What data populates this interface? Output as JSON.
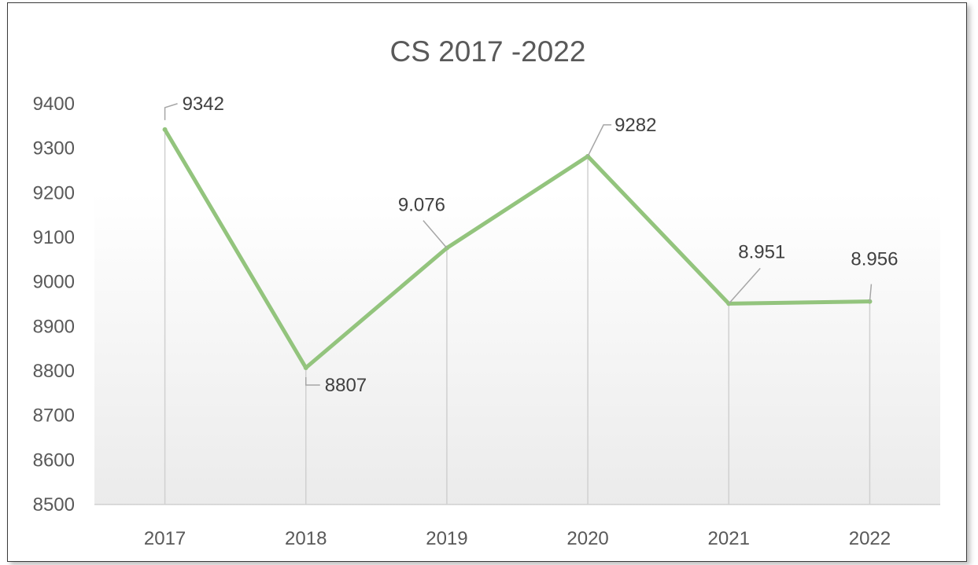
{
  "chart_data": {
    "type": "line",
    "title": "CS 2017 -2022",
    "categories": [
      "2017",
      "2018",
      "2019",
      "2020",
      "2021",
      "2022"
    ],
    "values": [
      9342,
      8807,
      9076,
      9282,
      8951,
      8956
    ],
    "data_labels": [
      "9342",
      "8807",
      "9.076",
      "9282",
      "8.951",
      "8.956"
    ],
    "ylim": [
      8500,
      9400
    ],
    "yticks": [
      "8500",
      "8600",
      "8700",
      "8800",
      "8900",
      "9000",
      "9100",
      "9200",
      "9300",
      "9400"
    ],
    "xlabel": "",
    "ylabel": "",
    "line_color": "#93c47d",
    "drop_lines": true,
    "legend": "none"
  }
}
